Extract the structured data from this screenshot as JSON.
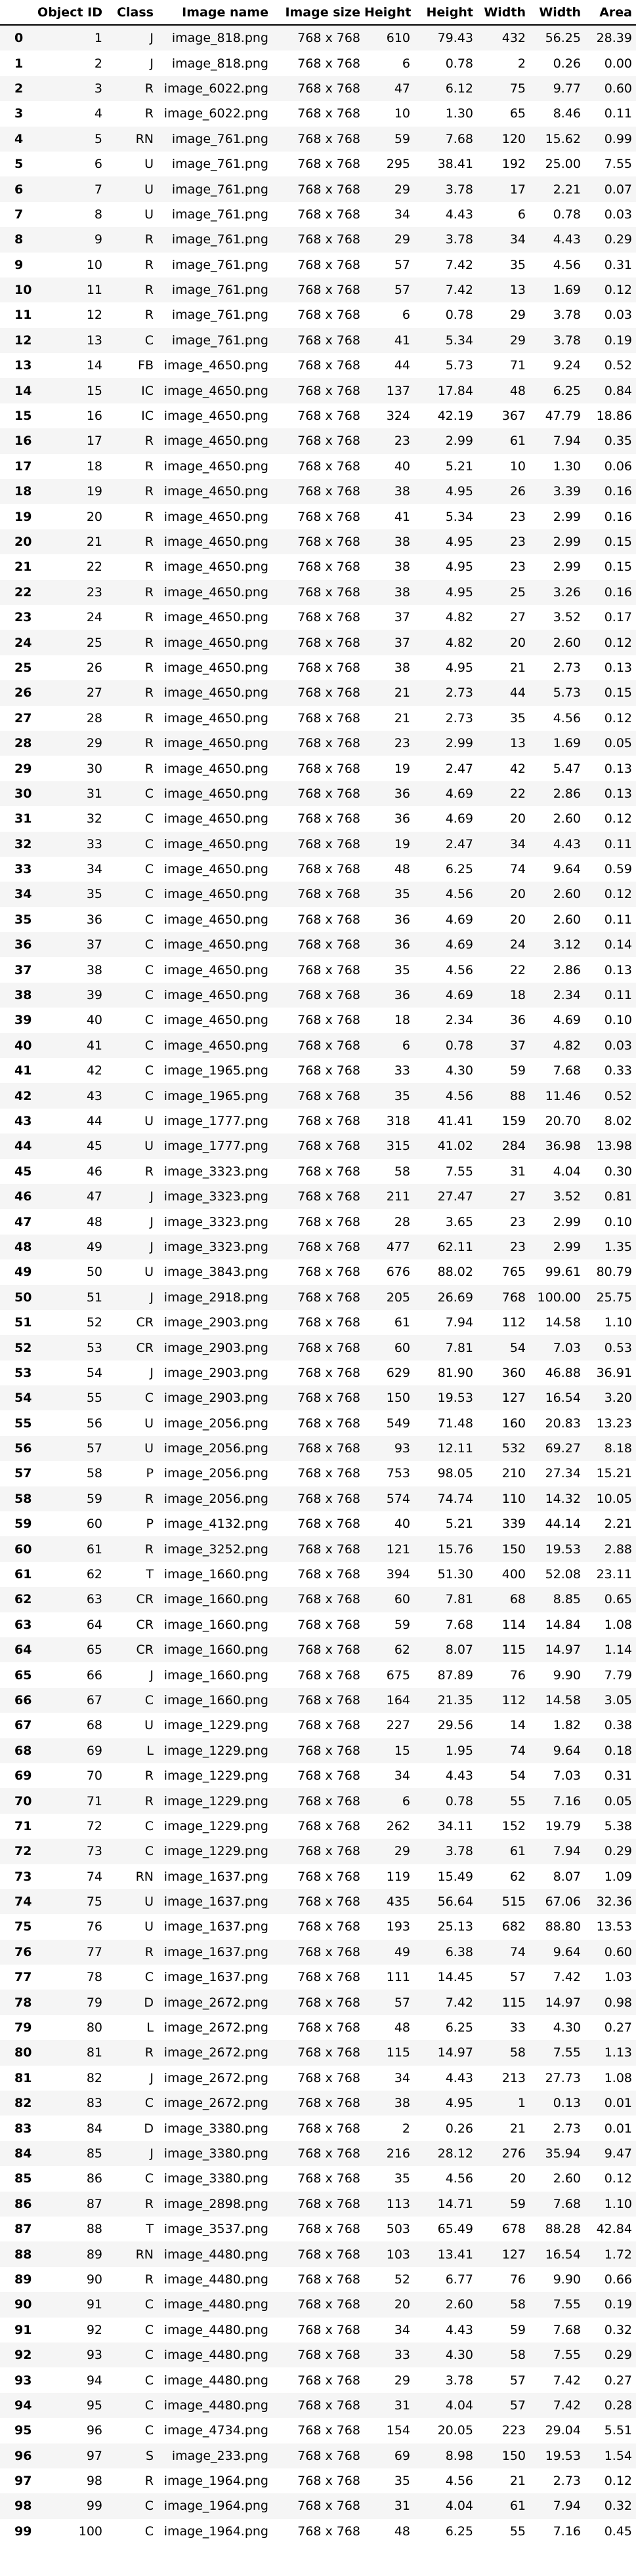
{
  "table": {
    "headers": [
      "",
      "Object ID",
      "Class",
      "Image name",
      "Image size",
      "Height",
      "Height",
      "Width",
      "Width",
      "Area"
    ],
    "rows": [
      [
        "0",
        "1",
        "J",
        "image_818.png",
        "768 x 768",
        "610",
        "79.43",
        "432",
        "56.25",
        "28.39"
      ],
      [
        "1",
        "2",
        "J",
        "image_818.png",
        "768 x 768",
        "6",
        "0.78",
        "2",
        "0.26",
        "0.00"
      ],
      [
        "2",
        "3",
        "R",
        "image_6022.png",
        "768 x 768",
        "47",
        "6.12",
        "75",
        "9.77",
        "0.60"
      ],
      [
        "3",
        "4",
        "R",
        "image_6022.png",
        "768 x 768",
        "10",
        "1.30",
        "65",
        "8.46",
        "0.11"
      ],
      [
        "4",
        "5",
        "RN",
        "image_761.png",
        "768 x 768",
        "59",
        "7.68",
        "120",
        "15.62",
        "0.99"
      ],
      [
        "5",
        "6",
        "U",
        "image_761.png",
        "768 x 768",
        "295",
        "38.41",
        "192",
        "25.00",
        "7.55"
      ],
      [
        "6",
        "7",
        "U",
        "image_761.png",
        "768 x 768",
        "29",
        "3.78",
        "17",
        "2.21",
        "0.07"
      ],
      [
        "7",
        "8",
        "U",
        "image_761.png",
        "768 x 768",
        "34",
        "4.43",
        "6",
        "0.78",
        "0.03"
      ],
      [
        "8",
        "9",
        "R",
        "image_761.png",
        "768 x 768",
        "29",
        "3.78",
        "34",
        "4.43",
        "0.29"
      ],
      [
        "9",
        "10",
        "R",
        "image_761.png",
        "768 x 768",
        "57",
        "7.42",
        "35",
        "4.56",
        "0.31"
      ],
      [
        "10",
        "11",
        "R",
        "image_761.png",
        "768 x 768",
        "57",
        "7.42",
        "13",
        "1.69",
        "0.12"
      ],
      [
        "11",
        "12",
        "R",
        "image_761.png",
        "768 x 768",
        "6",
        "0.78",
        "29",
        "3.78",
        "0.03"
      ],
      [
        "12",
        "13",
        "C",
        "image_761.png",
        "768 x 768",
        "41",
        "5.34",
        "29",
        "3.78",
        "0.19"
      ],
      [
        "13",
        "14",
        "FB",
        "image_4650.png",
        "768 x 768",
        "44",
        "5.73",
        "71",
        "9.24",
        "0.52"
      ],
      [
        "14",
        "15",
        "IC",
        "image_4650.png",
        "768 x 768",
        "137",
        "17.84",
        "48",
        "6.25",
        "0.84"
      ],
      [
        "15",
        "16",
        "IC",
        "image_4650.png",
        "768 x 768",
        "324",
        "42.19",
        "367",
        "47.79",
        "18.86"
      ],
      [
        "16",
        "17",
        "R",
        "image_4650.png",
        "768 x 768",
        "23",
        "2.99",
        "61",
        "7.94",
        "0.35"
      ],
      [
        "17",
        "18",
        "R",
        "image_4650.png",
        "768 x 768",
        "40",
        "5.21",
        "10",
        "1.30",
        "0.06"
      ],
      [
        "18",
        "19",
        "R",
        "image_4650.png",
        "768 x 768",
        "38",
        "4.95",
        "26",
        "3.39",
        "0.16"
      ],
      [
        "19",
        "20",
        "R",
        "image_4650.png",
        "768 x 768",
        "41",
        "5.34",
        "23",
        "2.99",
        "0.16"
      ],
      [
        "20",
        "21",
        "R",
        "image_4650.png",
        "768 x 768",
        "38",
        "4.95",
        "23",
        "2.99",
        "0.15"
      ],
      [
        "21",
        "22",
        "R",
        "image_4650.png",
        "768 x 768",
        "38",
        "4.95",
        "23",
        "2.99",
        "0.15"
      ],
      [
        "22",
        "23",
        "R",
        "image_4650.png",
        "768 x 768",
        "38",
        "4.95",
        "25",
        "3.26",
        "0.16"
      ],
      [
        "23",
        "24",
        "R",
        "image_4650.png",
        "768 x 768",
        "37",
        "4.82",
        "27",
        "3.52",
        "0.17"
      ],
      [
        "24",
        "25",
        "R",
        "image_4650.png",
        "768 x 768",
        "37",
        "4.82",
        "20",
        "2.60",
        "0.12"
      ],
      [
        "25",
        "26",
        "R",
        "image_4650.png",
        "768 x 768",
        "38",
        "4.95",
        "21",
        "2.73",
        "0.13"
      ],
      [
        "26",
        "27",
        "R",
        "image_4650.png",
        "768 x 768",
        "21",
        "2.73",
        "44",
        "5.73",
        "0.15"
      ],
      [
        "27",
        "28",
        "R",
        "image_4650.png",
        "768 x 768",
        "21",
        "2.73",
        "35",
        "4.56",
        "0.12"
      ],
      [
        "28",
        "29",
        "R",
        "image_4650.png",
        "768 x 768",
        "23",
        "2.99",
        "13",
        "1.69",
        "0.05"
      ],
      [
        "29",
        "30",
        "R",
        "image_4650.png",
        "768 x 768",
        "19",
        "2.47",
        "42",
        "5.47",
        "0.13"
      ],
      [
        "30",
        "31",
        "C",
        "image_4650.png",
        "768 x 768",
        "36",
        "4.69",
        "22",
        "2.86",
        "0.13"
      ],
      [
        "31",
        "32",
        "C",
        "image_4650.png",
        "768 x 768",
        "36",
        "4.69",
        "20",
        "2.60",
        "0.12"
      ],
      [
        "32",
        "33",
        "C",
        "image_4650.png",
        "768 x 768",
        "19",
        "2.47",
        "34",
        "4.43",
        "0.11"
      ],
      [
        "33",
        "34",
        "C",
        "image_4650.png",
        "768 x 768",
        "48",
        "6.25",
        "74",
        "9.64",
        "0.59"
      ],
      [
        "34",
        "35",
        "C",
        "image_4650.png",
        "768 x 768",
        "35",
        "4.56",
        "20",
        "2.60",
        "0.12"
      ],
      [
        "35",
        "36",
        "C",
        "image_4650.png",
        "768 x 768",
        "36",
        "4.69",
        "20",
        "2.60",
        "0.11"
      ],
      [
        "36",
        "37",
        "C",
        "image_4650.png",
        "768 x 768",
        "36",
        "4.69",
        "24",
        "3.12",
        "0.14"
      ],
      [
        "37",
        "38",
        "C",
        "image_4650.png",
        "768 x 768",
        "35",
        "4.56",
        "22",
        "2.86",
        "0.13"
      ],
      [
        "38",
        "39",
        "C",
        "image_4650.png",
        "768 x 768",
        "36",
        "4.69",
        "18",
        "2.34",
        "0.11"
      ],
      [
        "39",
        "40",
        "C",
        "image_4650.png",
        "768 x 768",
        "18",
        "2.34",
        "36",
        "4.69",
        "0.10"
      ],
      [
        "40",
        "41",
        "C",
        "image_4650.png",
        "768 x 768",
        "6",
        "0.78",
        "37",
        "4.82",
        "0.03"
      ],
      [
        "41",
        "42",
        "C",
        "image_1965.png",
        "768 x 768",
        "33",
        "4.30",
        "59",
        "7.68",
        "0.33"
      ],
      [
        "42",
        "43",
        "C",
        "image_1965.png",
        "768 x 768",
        "35",
        "4.56",
        "88",
        "11.46",
        "0.52"
      ],
      [
        "43",
        "44",
        "U",
        "image_1777.png",
        "768 x 768",
        "318",
        "41.41",
        "159",
        "20.70",
        "8.02"
      ],
      [
        "44",
        "45",
        "U",
        "image_1777.png",
        "768 x 768",
        "315",
        "41.02",
        "284",
        "36.98",
        "13.98"
      ],
      [
        "45",
        "46",
        "R",
        "image_3323.png",
        "768 x 768",
        "58",
        "7.55",
        "31",
        "4.04",
        "0.30"
      ],
      [
        "46",
        "47",
        "J",
        "image_3323.png",
        "768 x 768",
        "211",
        "27.47",
        "27",
        "3.52",
        "0.81"
      ],
      [
        "47",
        "48",
        "J",
        "image_3323.png",
        "768 x 768",
        "28",
        "3.65",
        "23",
        "2.99",
        "0.10"
      ],
      [
        "48",
        "49",
        "J",
        "image_3323.png",
        "768 x 768",
        "477",
        "62.11",
        "23",
        "2.99",
        "1.35"
      ],
      [
        "49",
        "50",
        "U",
        "image_3843.png",
        "768 x 768",
        "676",
        "88.02",
        "765",
        "99.61",
        "80.79"
      ],
      [
        "50",
        "51",
        "J",
        "image_2918.png",
        "768 x 768",
        "205",
        "26.69",
        "768",
        "100.00",
        "25.75"
      ],
      [
        "51",
        "52",
        "CR",
        "image_2903.png",
        "768 x 768",
        "61",
        "7.94",
        "112",
        "14.58",
        "1.10"
      ],
      [
        "52",
        "53",
        "CR",
        "image_2903.png",
        "768 x 768",
        "60",
        "7.81",
        "54",
        "7.03",
        "0.53"
      ],
      [
        "53",
        "54",
        "J",
        "image_2903.png",
        "768 x 768",
        "629",
        "81.90",
        "360",
        "46.88",
        "36.91"
      ],
      [
        "54",
        "55",
        "C",
        "image_2903.png",
        "768 x 768",
        "150",
        "19.53",
        "127",
        "16.54",
        "3.20"
      ],
      [
        "55",
        "56",
        "U",
        "image_2056.png",
        "768 x 768",
        "549",
        "71.48",
        "160",
        "20.83",
        "13.23"
      ],
      [
        "56",
        "57",
        "U",
        "image_2056.png",
        "768 x 768",
        "93",
        "12.11",
        "532",
        "69.27",
        "8.18"
      ],
      [
        "57",
        "58",
        "P",
        "image_2056.png",
        "768 x 768",
        "753",
        "98.05",
        "210",
        "27.34",
        "15.21"
      ],
      [
        "58",
        "59",
        "R",
        "image_2056.png",
        "768 x 768",
        "574",
        "74.74",
        "110",
        "14.32",
        "10.05"
      ],
      [
        "59",
        "60",
        "P",
        "image_4132.png",
        "768 x 768",
        "40",
        "5.21",
        "339",
        "44.14",
        "2.21"
      ],
      [
        "60",
        "61",
        "R",
        "image_3252.png",
        "768 x 768",
        "121",
        "15.76",
        "150",
        "19.53",
        "2.88"
      ],
      [
        "61",
        "62",
        "T",
        "image_1660.png",
        "768 x 768",
        "394",
        "51.30",
        "400",
        "52.08",
        "23.11"
      ],
      [
        "62",
        "63",
        "CR",
        "image_1660.png",
        "768 x 768",
        "60",
        "7.81",
        "68",
        "8.85",
        "0.65"
      ],
      [
        "63",
        "64",
        "CR",
        "image_1660.png",
        "768 x 768",
        "59",
        "7.68",
        "114",
        "14.84",
        "1.08"
      ],
      [
        "64",
        "65",
        "CR",
        "image_1660.png",
        "768 x 768",
        "62",
        "8.07",
        "115",
        "14.97",
        "1.14"
      ],
      [
        "65",
        "66",
        "J",
        "image_1660.png",
        "768 x 768",
        "675",
        "87.89",
        "76",
        "9.90",
        "7.79"
      ],
      [
        "66",
        "67",
        "C",
        "image_1660.png",
        "768 x 768",
        "164",
        "21.35",
        "112",
        "14.58",
        "3.05"
      ],
      [
        "67",
        "68",
        "U",
        "image_1229.png",
        "768 x 768",
        "227",
        "29.56",
        "14",
        "1.82",
        "0.38"
      ],
      [
        "68",
        "69",
        "L",
        "image_1229.png",
        "768 x 768",
        "15",
        "1.95",
        "74",
        "9.64",
        "0.18"
      ],
      [
        "69",
        "70",
        "R",
        "image_1229.png",
        "768 x 768",
        "34",
        "4.43",
        "54",
        "7.03",
        "0.31"
      ],
      [
        "70",
        "71",
        "R",
        "image_1229.png",
        "768 x 768",
        "6",
        "0.78",
        "55",
        "7.16",
        "0.05"
      ],
      [
        "71",
        "72",
        "C",
        "image_1229.png",
        "768 x 768",
        "262",
        "34.11",
        "152",
        "19.79",
        "5.38"
      ],
      [
        "72",
        "73",
        "C",
        "image_1229.png",
        "768 x 768",
        "29",
        "3.78",
        "61",
        "7.94",
        "0.29"
      ],
      [
        "73",
        "74",
        "RN",
        "image_1637.png",
        "768 x 768",
        "119",
        "15.49",
        "62",
        "8.07",
        "1.09"
      ],
      [
        "74",
        "75",
        "U",
        "image_1637.png",
        "768 x 768",
        "435",
        "56.64",
        "515",
        "67.06",
        "32.36"
      ],
      [
        "75",
        "76",
        "U",
        "image_1637.png",
        "768 x 768",
        "193",
        "25.13",
        "682",
        "88.80",
        "13.53"
      ],
      [
        "76",
        "77",
        "R",
        "image_1637.png",
        "768 x 768",
        "49",
        "6.38",
        "74",
        "9.64",
        "0.60"
      ],
      [
        "77",
        "78",
        "C",
        "image_1637.png",
        "768 x 768",
        "111",
        "14.45",
        "57",
        "7.42",
        "1.03"
      ],
      [
        "78",
        "79",
        "D",
        "image_2672.png",
        "768 x 768",
        "57",
        "7.42",
        "115",
        "14.97",
        "0.98"
      ],
      [
        "79",
        "80",
        "L",
        "image_2672.png",
        "768 x 768",
        "48",
        "6.25",
        "33",
        "4.30",
        "0.27"
      ],
      [
        "80",
        "81",
        "R",
        "image_2672.png",
        "768 x 768",
        "115",
        "14.97",
        "58",
        "7.55",
        "1.13"
      ],
      [
        "81",
        "82",
        "J",
        "image_2672.png",
        "768 x 768",
        "34",
        "4.43",
        "213",
        "27.73",
        "1.08"
      ],
      [
        "82",
        "83",
        "C",
        "image_2672.png",
        "768 x 768",
        "38",
        "4.95",
        "1",
        "0.13",
        "0.01"
      ],
      [
        "83",
        "84",
        "D",
        "image_3380.png",
        "768 x 768",
        "2",
        "0.26",
        "21",
        "2.73",
        "0.01"
      ],
      [
        "84",
        "85",
        "J",
        "image_3380.png",
        "768 x 768",
        "216",
        "28.12",
        "276",
        "35.94",
        "9.47"
      ],
      [
        "85",
        "86",
        "C",
        "image_3380.png",
        "768 x 768",
        "35",
        "4.56",
        "20",
        "2.60",
        "0.12"
      ],
      [
        "86",
        "87",
        "R",
        "image_2898.png",
        "768 x 768",
        "113",
        "14.71",
        "59",
        "7.68",
        "1.10"
      ],
      [
        "87",
        "88",
        "T",
        "image_3537.png",
        "768 x 768",
        "503",
        "65.49",
        "678",
        "88.28",
        "42.84"
      ],
      [
        "88",
        "89",
        "RN",
        "image_4480.png",
        "768 x 768",
        "103",
        "13.41",
        "127",
        "16.54",
        "1.72"
      ],
      [
        "89",
        "90",
        "R",
        "image_4480.png",
        "768 x 768",
        "52",
        "6.77",
        "76",
        "9.90",
        "0.66"
      ],
      [
        "90",
        "91",
        "C",
        "image_4480.png",
        "768 x 768",
        "20",
        "2.60",
        "58",
        "7.55",
        "0.19"
      ],
      [
        "91",
        "92",
        "C",
        "image_4480.png",
        "768 x 768",
        "34",
        "4.43",
        "59",
        "7.68",
        "0.32"
      ],
      [
        "92",
        "93",
        "C",
        "image_4480.png",
        "768 x 768",
        "33",
        "4.30",
        "58",
        "7.55",
        "0.29"
      ],
      [
        "93",
        "94",
        "C",
        "image_4480.png",
        "768 x 768",
        "29",
        "3.78",
        "57",
        "7.42",
        "0.27"
      ],
      [
        "94",
        "95",
        "C",
        "image_4480.png",
        "768 x 768",
        "31",
        "4.04",
        "57",
        "7.42",
        "0.28"
      ],
      [
        "95",
        "96",
        "C",
        "image_4734.png",
        "768 x 768",
        "154",
        "20.05",
        "223",
        "29.04",
        "5.51"
      ],
      [
        "96",
        "97",
        "S",
        "image_233.png",
        "768 x 768",
        "69",
        "8.98",
        "150",
        "19.53",
        "1.54"
      ],
      [
        "97",
        "98",
        "R",
        "image_1964.png",
        "768 x 768",
        "35",
        "4.56",
        "21",
        "2.73",
        "0.12"
      ],
      [
        "98",
        "99",
        "C",
        "image_1964.png",
        "768 x 768",
        "31",
        "4.04",
        "61",
        "7.94",
        "0.32"
      ],
      [
        "99",
        "100",
        "C",
        "image_1964.png",
        "768 x 768",
        "48",
        "6.25",
        "55",
        "7.16",
        "0.45"
      ]
    ]
  }
}
